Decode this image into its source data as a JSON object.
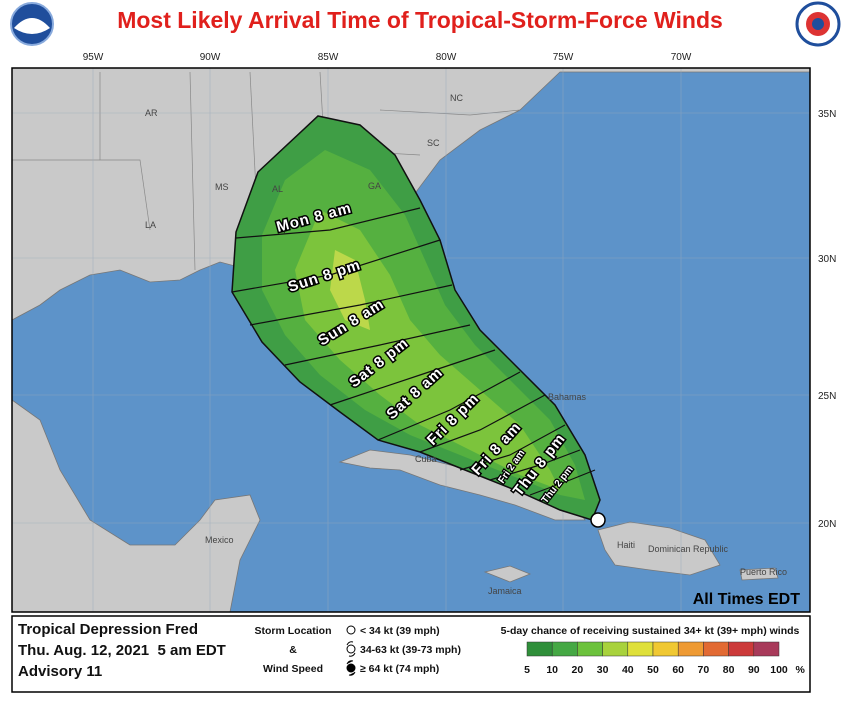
{
  "header": {
    "title": "Most Likely Arrival Time of Tropical-Storm-Force Winds"
  },
  "map": {
    "longitudes": [
      "95W",
      "90W",
      "85W",
      "80W",
      "75W",
      "70W"
    ],
    "latitudes": [
      "35N",
      "30N",
      "25N",
      "20N"
    ],
    "time_note": "All Times EDT"
  },
  "places": [
    "AR",
    "MS",
    "AL",
    "GA",
    "SC",
    "NC",
    "LA",
    "Cuba",
    "Bahamas",
    "Mexico",
    "Haiti",
    "Dominican Republic",
    "Jamaica",
    "Puerto Rico"
  ],
  "arrival_times": [
    "Mon 8 am",
    "Sun 8 pm",
    "Sun 8 am",
    "Sat 8 pm",
    "Sat 8 am",
    "Fri 8 pm",
    "Fri 8 am",
    "Fri 2 am",
    "Thu 8 pm",
    "Thu 2 pm"
  ],
  "footer": {
    "storm": "Tropical Depression Fred",
    "issued": "Thu. Aug. 12, 2021  5 am EDT",
    "advisory": "Advisory 11",
    "legend": {
      "title_1": "Storm Location",
      "title_2": "&",
      "title_3": "Wind Speed",
      "entries": [
        "< 34 kt (39 mph)",
        "34-63 kt (39-73 mph)",
        "≥ 64 kt (74 mph)"
      ]
    },
    "scale": {
      "title": "5-day chance of receiving sustained 34+ kt (39+ mph) winds",
      "labels": [
        5,
        10,
        20,
        30,
        40,
        50,
        60,
        70,
        80,
        90,
        100
      ],
      "unit": "%",
      "colors": [
        "#2f8f3a",
        "#45a844",
        "#6cc23c",
        "#a8d23c",
        "#dfe03a",
        "#f0c832",
        "#ee9a33",
        "#e26a33",
        "#cc3a3a",
        "#a83a5a"
      ]
    }
  }
}
